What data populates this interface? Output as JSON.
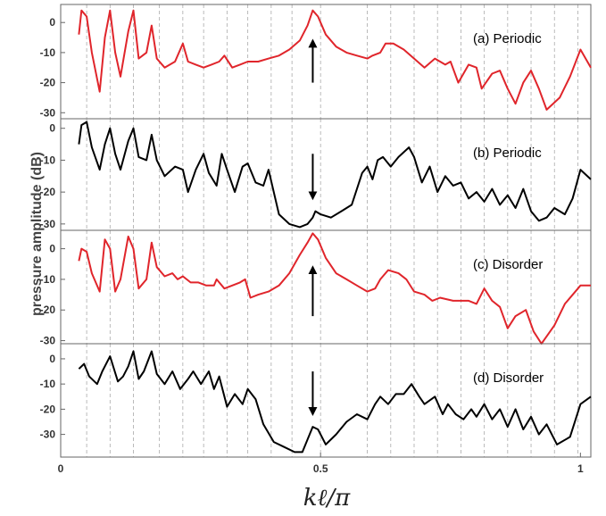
{
  "chart_data": {
    "type": "line",
    "xlabel": "kℓ/π",
    "ylabel": "pressure amplitude (dB)",
    "xlim": [
      0,
      1.02
    ],
    "x_ticks": [
      "0",
      "0.5",
      "1"
    ],
    "x_tick_values": [
      0,
      0.5,
      1
    ],
    "grid_x": [
      0.05,
      0.095,
      0.14,
      0.19,
      0.235,
      0.275,
      0.32,
      0.36,
      0.405,
      0.445,
      0.5,
      0.59,
      0.635,
      0.68,
      0.725,
      0.77,
      0.815,
      0.86,
      0.905,
      0.95,
      0.995
    ],
    "colors": {
      "red": "#e0252b",
      "black": "#000000",
      "grid": "#aaaaaa"
    },
    "panels": [
      {
        "label": "(a) Periodic",
        "color": "#e0252b",
        "ylim": [
          -32,
          6
        ],
        "yticks": [
          0,
          -10,
          -20,
          -30
        ],
        "arrow": {
          "x": 0.485,
          "direction": "up",
          "from": -20,
          "to": -6
        },
        "x": [
          0.035,
          0.04,
          0.05,
          0.06,
          0.075,
          0.085,
          0.095,
          0.105,
          0.115,
          0.13,
          0.14,
          0.15,
          0.165,
          0.175,
          0.185,
          0.2,
          0.22,
          0.235,
          0.245,
          0.26,
          0.275,
          0.29,
          0.305,
          0.315,
          0.33,
          0.345,
          0.36,
          0.38,
          0.4,
          0.42,
          0.44,
          0.46,
          0.475,
          0.485,
          0.495,
          0.51,
          0.53,
          0.55,
          0.57,
          0.59,
          0.6,
          0.615,
          0.625,
          0.64,
          0.66,
          0.68,
          0.7,
          0.72,
          0.74,
          0.75,
          0.765,
          0.785,
          0.8,
          0.81,
          0.83,
          0.845,
          0.86,
          0.875,
          0.89,
          0.905,
          0.92,
          0.935,
          0.96,
          0.98,
          1.0,
          1.02
        ],
        "y": [
          -4,
          4,
          2,
          -10,
          -23,
          -5,
          4,
          -10,
          -18,
          -3,
          4,
          -12,
          -10,
          -1,
          -12,
          -15,
          -13,
          -7,
          -13,
          -14,
          -15,
          -14,
          -13,
          -11,
          -15,
          -14,
          -13,
          -13,
          -12,
          -11,
          -9,
          -6,
          -1,
          4,
          2,
          -4,
          -8,
          -10,
          -11,
          -12,
          -11,
          -10,
          -7,
          -7,
          -9,
          -12,
          -15,
          -12,
          -14,
          -13,
          -20,
          -14,
          -15,
          -22,
          -17,
          -16,
          -22,
          -27,
          -20,
          -16,
          -22,
          -29,
          -25,
          -18,
          -9,
          -15
        ]
      },
      {
        "label": "(b) Periodic",
        "color": "#000000",
        "ylim": [
          -32,
          3
        ],
        "yticks": [
          0,
          -10,
          -20,
          -30
        ],
        "arrow": {
          "x": 0.485,
          "direction": "down",
          "from": -8,
          "to": -22
        },
        "x": [
          0.035,
          0.04,
          0.05,
          0.06,
          0.075,
          0.085,
          0.095,
          0.105,
          0.115,
          0.13,
          0.14,
          0.15,
          0.165,
          0.175,
          0.185,
          0.2,
          0.22,
          0.235,
          0.245,
          0.26,
          0.275,
          0.285,
          0.3,
          0.31,
          0.32,
          0.335,
          0.35,
          0.36,
          0.375,
          0.39,
          0.4,
          0.42,
          0.44,
          0.46,
          0.475,
          0.485,
          0.49,
          0.5,
          0.52,
          0.54,
          0.56,
          0.58,
          0.59,
          0.6,
          0.61,
          0.62,
          0.635,
          0.65,
          0.67,
          0.68,
          0.695,
          0.71,
          0.725,
          0.74,
          0.755,
          0.77,
          0.785,
          0.8,
          0.815,
          0.83,
          0.845,
          0.86,
          0.875,
          0.89,
          0.905,
          0.92,
          0.935,
          0.95,
          0.97,
          0.985,
          1.0,
          1.02
        ],
        "y": [
          -5,
          1,
          2,
          -6,
          -13,
          -5,
          0,
          -8,
          -13,
          -4,
          0,
          -9,
          -10,
          -2,
          -10,
          -15,
          -12,
          -13,
          -20,
          -13,
          -8,
          -14,
          -18,
          -8,
          -13,
          -20,
          -12,
          -11,
          -17,
          -18,
          -13,
          -27,
          -30,
          -31,
          -30,
          -28,
          -26,
          -27,
          -28,
          -26,
          -24,
          -14,
          -12,
          -16,
          -10,
          -9,
          -12,
          -9,
          -6,
          -9,
          -17,
          -12,
          -20,
          -15,
          -18,
          -17,
          -22,
          -20,
          -23,
          -19,
          -24,
          -21,
          -25,
          -19,
          -26,
          -29,
          -28,
          -25,
          -27,
          -22,
          -13,
          -16
        ]
      },
      {
        "label": "(c) Disorder",
        "color": "#e0252b",
        "ylim": [
          -31,
          6
        ],
        "yticks": [
          0,
          -10,
          -20,
          -30
        ],
        "arrow": {
          "x": 0.485,
          "direction": "up",
          "from": -22,
          "to": -6
        },
        "x": [
          0.035,
          0.04,
          0.05,
          0.06,
          0.075,
          0.085,
          0.095,
          0.105,
          0.115,
          0.13,
          0.14,
          0.15,
          0.165,
          0.175,
          0.185,
          0.2,
          0.215,
          0.225,
          0.235,
          0.25,
          0.265,
          0.28,
          0.295,
          0.3,
          0.315,
          0.33,
          0.345,
          0.355,
          0.365,
          0.38,
          0.4,
          0.42,
          0.44,
          0.46,
          0.475,
          0.485,
          0.495,
          0.51,
          0.53,
          0.55,
          0.57,
          0.59,
          0.605,
          0.615,
          0.63,
          0.65,
          0.665,
          0.68,
          0.7,
          0.715,
          0.73,
          0.755,
          0.77,
          0.785,
          0.8,
          0.815,
          0.83,
          0.845,
          0.86,
          0.875,
          0.895,
          0.91,
          0.925,
          0.95,
          0.97,
          1.0,
          1.02
        ],
        "y": [
          -4,
          0,
          -1,
          -8,
          -14,
          3,
          0,
          -14,
          -10,
          4,
          0,
          -13,
          -10,
          2,
          -6,
          -9,
          -8,
          -10,
          -9,
          -11,
          -11,
          -12,
          -12,
          -10,
          -13,
          -12,
          -11,
          -10,
          -16,
          -15,
          -14,
          -12,
          -8,
          -2,
          2,
          5,
          3,
          -3,
          -8,
          -10,
          -12,
          -14,
          -13,
          -10,
          -7,
          -8,
          -10,
          -14,
          -15,
          -17,
          -16,
          -17,
          -17,
          -17,
          -18,
          -13,
          -17,
          -19,
          -26,
          -22,
          -20,
          -27,
          -31,
          -25,
          -18,
          -12,
          -12
        ]
      },
      {
        "label": "(d) Disorder",
        "color": "#000000",
        "ylim": [
          -39,
          6
        ],
        "yticks": [
          0,
          -10,
          -20,
          -30
        ],
        "arrow": {
          "x": 0.485,
          "direction": "down",
          "from": -5,
          "to": -22
        },
        "x": [
          0.035,
          0.045,
          0.055,
          0.07,
          0.08,
          0.095,
          0.11,
          0.12,
          0.13,
          0.14,
          0.15,
          0.16,
          0.175,
          0.185,
          0.2,
          0.215,
          0.23,
          0.245,
          0.255,
          0.27,
          0.285,
          0.295,
          0.305,
          0.32,
          0.335,
          0.35,
          0.36,
          0.375,
          0.39,
          0.41,
          0.43,
          0.45,
          0.465,
          0.475,
          0.485,
          0.495,
          0.51,
          0.53,
          0.55,
          0.57,
          0.59,
          0.605,
          0.615,
          0.63,
          0.645,
          0.66,
          0.675,
          0.69,
          0.7,
          0.72,
          0.735,
          0.745,
          0.76,
          0.775,
          0.79,
          0.8,
          0.815,
          0.83,
          0.845,
          0.86,
          0.875,
          0.89,
          0.905,
          0.92,
          0.935,
          0.955,
          0.98,
          1.0,
          1.02
        ],
        "y": [
          -4,
          -2,
          -7,
          -10,
          -5,
          1,
          -9,
          -7,
          -3,
          3,
          -8,
          -5,
          3,
          -6,
          -10,
          -5,
          -12,
          -8,
          -5,
          -10,
          -5,
          -12,
          -7,
          -19,
          -14,
          -18,
          -12,
          -16,
          -26,
          -33,
          -35,
          -37,
          -37,
          -32,
          -27,
          -28,
          -34,
          -30,
          -25,
          -22,
          -24,
          -18,
          -15,
          -18,
          -14,
          -14,
          -10,
          -15,
          -18,
          -15,
          -22,
          -18,
          -22,
          -24,
          -20,
          -23,
          -18,
          -24,
          -20,
          -27,
          -20,
          -28,
          -23,
          -30,
          -26,
          -34,
          -31,
          -18,
          -15
        ]
      }
    ]
  }
}
